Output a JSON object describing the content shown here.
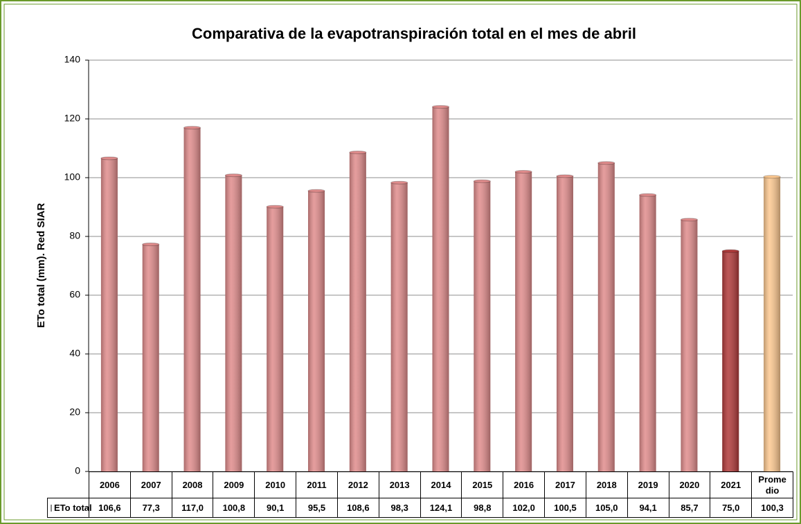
{
  "chart_data": {
    "type": "bar",
    "title": "Comparativa de la evapotranspiración total en el mes de abril",
    "ylabel": "ETo total (mm). Red SIAR",
    "categories": [
      "2006",
      "2007",
      "2008",
      "2009",
      "2010",
      "2011",
      "2012",
      "2013",
      "2014",
      "2015",
      "2016",
      "2017",
      "2018",
      "2019",
      "2020",
      "2021",
      "Promedio"
    ],
    "series": [
      {
        "name": "ETo total",
        "color": "#e08c8c",
        "values": [
          106.6,
          77.3,
          117.0,
          100.8,
          90.1,
          95.5,
          108.6,
          98.3,
          124.1,
          98.8,
          102.0,
          100.5,
          105.0,
          94.1,
          85.7,
          75.0,
          100.3
        ],
        "value_labels": [
          "106,6",
          "77,3",
          "117,0",
          "100,8",
          "90,1",
          "95,5",
          "108,6",
          "98,3",
          "124,1",
          "98,8",
          "102,0",
          "100,5",
          "105,0",
          "94,1",
          "85,7",
          "75,0",
          "100,3"
        ],
        "colors": [
          "#e08c8c",
          "#e08c8c",
          "#e08c8c",
          "#e08c8c",
          "#e08c8c",
          "#e08c8c",
          "#e08c8c",
          "#e08c8c",
          "#e08c8c",
          "#e08c8c",
          "#e08c8c",
          "#e08c8c",
          "#e08c8c",
          "#e08c8c",
          "#e08c8c",
          "#b03a3a",
          "#fcc890"
        ]
      }
    ],
    "ylim": [
      0,
      140
    ],
    "yticks": [
      0,
      20,
      40,
      60,
      80,
      100,
      120,
      140
    ],
    "grid": true
  }
}
